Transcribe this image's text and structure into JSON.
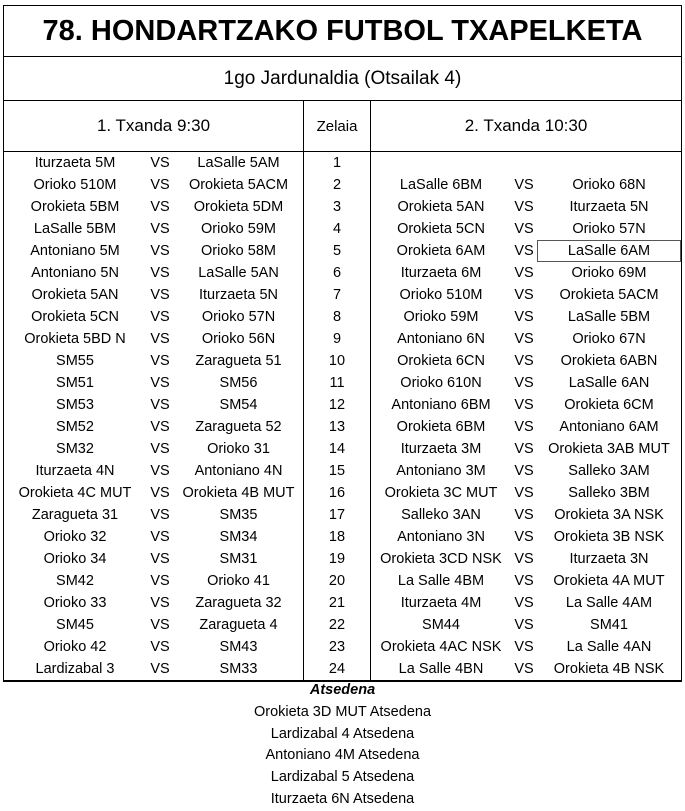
{
  "title": "78. HONDARTZAKO FUTBOL TXAPELKETA",
  "subtitle": "1go Jardunaldia (Otsailak 4)",
  "headers": {
    "left": "1. Txanda 9:30",
    "mid": "Zelaia",
    "right": "2. Txanda 10:30"
  },
  "rows": [
    {
      "a": "Iturzaeta 5M",
      "vs": "VS",
      "b": "LaSalle 5AM",
      "n": "1",
      "c": "",
      "vs2": "",
      "d": ""
    },
    {
      "a": "Orioko 510M",
      "vs": "VS",
      "b": "Orokieta 5ACM",
      "n": "2",
      "c": "LaSalle 6BM",
      "vs2": "VS",
      "d": "Orioko 68N"
    },
    {
      "a": "Orokieta 5BM",
      "vs": "VS",
      "b": "Orokieta 5DM",
      "n": "3",
      "c": "Orokieta 5AN",
      "vs2": "VS",
      "d": "Iturzaeta 5N"
    },
    {
      "a": "LaSalle 5BM",
      "vs": "VS",
      "b": "Orioko 59M",
      "n": "4",
      "c": "Orokieta 5CN",
      "vs2": "VS",
      "d": "Orioko 57N"
    },
    {
      "a": "Antoniano 5M",
      "vs": "VS",
      "b": "Orioko 58M",
      "n": "5",
      "c": "Orokieta 6AM",
      "vs2": "VS",
      "d": "LaSalle 6AM"
    },
    {
      "a": "Antoniano 5N",
      "vs": "VS",
      "b": "LaSalle 5AN",
      "n": "6",
      "c": "Iturzaeta 6M",
      "vs2": "VS",
      "d": "Orioko 69M"
    },
    {
      "a": "Orokieta 5AN",
      "vs": "VS",
      "b": "Iturzaeta 5N",
      "n": "7",
      "c": "Orioko 510M",
      "vs2": "VS",
      "d": "Orokieta 5ACM"
    },
    {
      "a": "Orokieta 5CN",
      "vs": "VS",
      "b": "Orioko 57N",
      "n": "8",
      "c": "Orioko 59M",
      "vs2": "VS",
      "d": "LaSalle 5BM"
    },
    {
      "a": "Orokieta 5BD N",
      "vs": "VS",
      "b": "Orioko 56N",
      "n": "9",
      "c": "Antoniano 6N",
      "vs2": "VS",
      "d": "Orioko 67N"
    },
    {
      "a": "SM55",
      "vs": "VS",
      "b": "Zaragueta 51",
      "n": "10",
      "c": "Orokieta 6CN",
      "vs2": "VS",
      "d": "Orokieta 6ABN"
    },
    {
      "a": "SM51",
      "vs": "VS",
      "b": "SM56",
      "n": "11",
      "c": "Orioko 610N",
      "vs2": "VS",
      "d": "LaSalle 6AN"
    },
    {
      "a": "SM53",
      "vs": "VS",
      "b": "SM54",
      "n": "12",
      "c": "Antoniano 6BM",
      "vs2": "VS",
      "d": "Orokieta 6CM"
    },
    {
      "a": "SM52",
      "vs": "VS",
      "b": "Zaragueta 52",
      "n": "13",
      "c": "Orokieta 6BM",
      "vs2": "VS",
      "d": "Antoniano 6AM"
    },
    {
      "a": "SM32",
      "vs": "VS",
      "b": "Orioko 31",
      "n": "14",
      "c": "Iturzaeta 3M",
      "vs2": "VS",
      "d": "Orokieta 3AB MUT"
    },
    {
      "a": "Iturzaeta 4N",
      "vs": "VS",
      "b": "Antoniano 4N",
      "n": "15",
      "c": "Antoniano 3M",
      "vs2": "VS",
      "d": "Salleko 3AM"
    },
    {
      "a": "Orokieta 4C MUT",
      "vs": "VS",
      "b": "Orokieta 4B MUT",
      "n": "16",
      "c": "Orokieta 3C MUT",
      "vs2": "VS",
      "d": "Salleko 3BM"
    },
    {
      "a": "Zaragueta 31",
      "vs": "VS",
      "b": "SM35",
      "n": "17",
      "c": "Salleko 3AN",
      "vs2": "VS",
      "d": "Orokieta 3A NSK"
    },
    {
      "a": "Orioko 32",
      "vs": "VS",
      "b": "SM34",
      "n": "18",
      "c": "Antoniano 3N",
      "vs2": "VS",
      "d": "Orokieta 3B NSK"
    },
    {
      "a": "Orioko 34",
      "vs": "VS",
      "b": "SM31",
      "n": "19",
      "c": "Orokieta 3CD NSK",
      "vs2": "VS",
      "d": "Iturzaeta 3N"
    },
    {
      "a": "SM42",
      "vs": "VS",
      "b": "Orioko 41",
      "n": "20",
      "c": "La Salle 4BM",
      "vs2": "VS",
      "d": "Orokieta 4A MUT"
    },
    {
      "a": "Orioko 33",
      "vs": "VS",
      "b": "Zaragueta 32",
      "n": "21",
      "c": "Iturzaeta 4M",
      "vs2": "VS",
      "d": "La Salle 4AM"
    },
    {
      "a": "SM45",
      "vs": "VS",
      "b": "Zaragueta 4",
      "n": "22",
      "c": "SM44",
      "vs2": "VS",
      "d": "SM41"
    },
    {
      "a": "Orioko 42",
      "vs": "VS",
      "b": "SM43",
      "n": "23",
      "c": "Orokieta 4AC NSK",
      "vs2": "VS",
      "d": "La Salle 4AN"
    },
    {
      "a": "Lardizabal 3",
      "vs": "VS",
      "b": "SM33",
      "n": "24",
      "c": "La Salle 4BN",
      "vs2": "VS",
      "d": "Orokieta 4B NSK"
    }
  ],
  "rest": {
    "heading": "Atsedena",
    "items": [
      "Orokieta 3D MUT Atsedena",
      "Lardizabal 4 Atsedena",
      "Antoniano 4M Atsedena",
      "Lardizabal 5 Atsedena",
      "Iturzaeta 6N Atsedena"
    ]
  }
}
